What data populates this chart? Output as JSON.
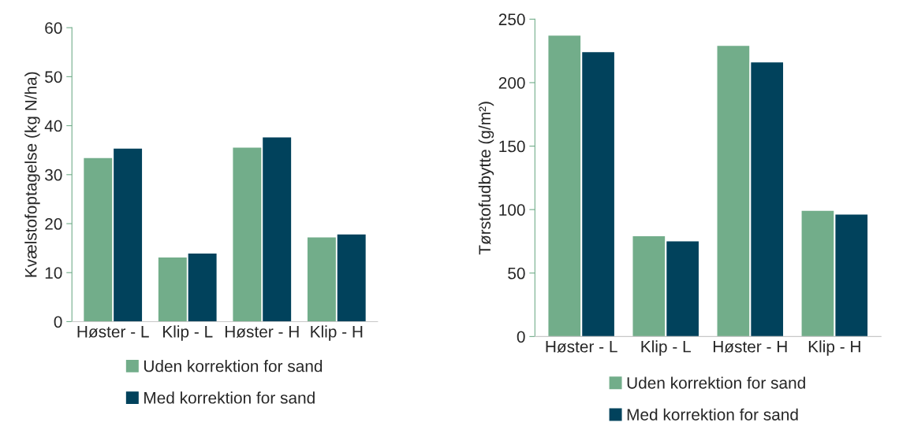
{
  "chart_data": [
    {
      "type": "bar",
      "ylabel": "Kvælstofoptagelse (kg N/ha)",
      "categories": [
        "Høster - L",
        "Klip - L",
        "Høster - H",
        "Klip - H"
      ],
      "series": [
        {
          "name": "Uden korrektion for sand",
          "color": "#72ad8a",
          "values": [
            33.4,
            13.1,
            35.5,
            17.2
          ]
        },
        {
          "name": "Med korrektion for sand",
          "color": "#01425c",
          "values": [
            35.3,
            13.9,
            37.6,
            17.8
          ]
        }
      ],
      "ylim": [
        0,
        60
      ],
      "yticks": [
        0,
        10,
        20,
        30,
        40,
        50,
        60
      ],
      "grid": false,
      "legend": "bottom"
    },
    {
      "type": "bar",
      "ylabel": "Tørstofudbytte (g/m²)",
      "categories": [
        "Høster - L",
        "Klip - L",
        "Høster - H",
        "Klip - H"
      ],
      "series": [
        {
          "name": "Uden korrektion for sand",
          "color": "#72ad8a",
          "values": [
            237,
            79,
            229,
            99
          ]
        },
        {
          "name": "Med korrektion for sand",
          "color": "#01425c",
          "values": [
            224,
            75,
            216,
            96
          ]
        }
      ],
      "ylim": [
        0,
        250
      ],
      "yticks": [
        0,
        50,
        100,
        150,
        200,
        250
      ],
      "grid": false,
      "legend": "bottom"
    }
  ]
}
